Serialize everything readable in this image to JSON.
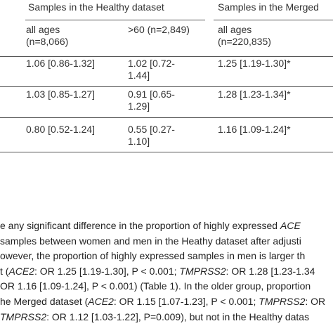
{
  "table": {
    "header": [
      "Samples in the Healthy dataset",
      "Samples in the Merged"
    ],
    "subheader": [
      [
        "all ages",
        "(n=8,066)"
      ],
      [
        ">60 (n=2,849)"
      ],
      [
        "all ages",
        "(n=220,835)"
      ]
    ],
    "rows": [
      [
        [
          "1.06 [0.86-1.32]"
        ],
        [
          "1.02 [0.72-",
          "1.44]"
        ],
        [
          "1.25 [1.19-1.30]*"
        ]
      ],
      [
        [
          "1.03 [0.85-1.27]"
        ],
        [
          "0.91 [0.65-",
          "1.29]"
        ],
        [
          "1.28 [1.23-1.34]*"
        ]
      ],
      [
        [
          "0.80 [0.52-1.24]"
        ],
        [
          "0.55 [0.27-",
          "1.10]"
        ],
        [
          "1.16 [1.09-1.24]*"
        ]
      ]
    ]
  },
  "paragraph": [
    [
      {
        "text": "e any significant difference in the proportion of highly expressed "
      },
      {
        "text": "ACE",
        "em": true
      }
    ],
    [
      {
        "text": "samples between women and men in the Heathy dataset after adjusti"
      }
    ],
    [
      {
        "text": "owever, the proportion of highly expressed samples in men is larger th"
      }
    ],
    [
      {
        "text": "t ("
      },
      {
        "text": "ACE2",
        "em": true
      },
      {
        "text": ": OR 1.25 [1.19-1.30], P < 0.001; "
      },
      {
        "text": "TMPRSS2",
        "em": true
      },
      {
        "text": ": OR 1.28 [1.23-1.34"
      }
    ],
    [
      {
        "text": "OR 1.16 [1.09-1.24], P < 0.001) (Table 1). In the older group, proportion"
      }
    ],
    [
      {
        "text": "he Merged dataset ("
      },
      {
        "text": "ACE2",
        "em": true
      },
      {
        "text": ": OR 1.15 [1.07-1.23], P < 0.001; "
      },
      {
        "text": "TMPRSS2",
        "em": true
      },
      {
        "text": ": OR"
      }
    ],
    [
      {
        "text": "TMPRSS2",
        "em": true
      },
      {
        "text": ": OR 1.12 [1.03-1.22], P=0.009), but not in the Healthy datas"
      }
    ]
  ]
}
